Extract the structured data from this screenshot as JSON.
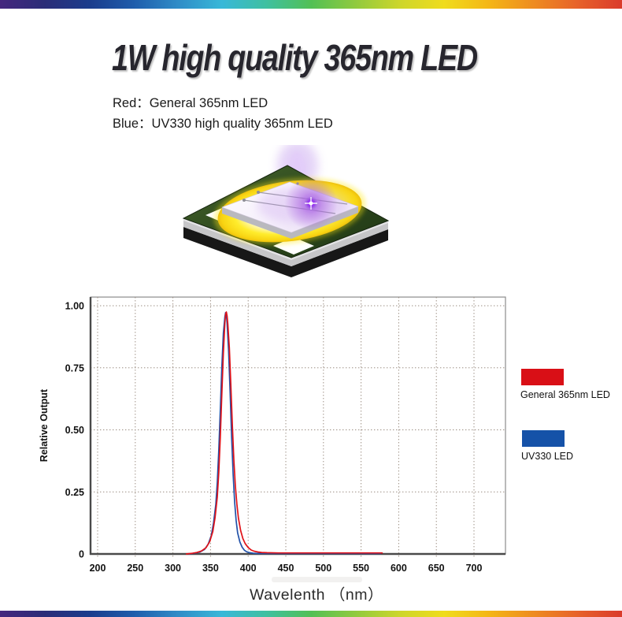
{
  "header": {
    "title": "1W high quality 365nm LED",
    "red_line": "Red：General 365nm LED",
    "blue_line": "Blue：UV330 high quality 365nm LED"
  },
  "rainbow": {
    "stops": [
      "#45277e",
      "#2b2d78",
      "#1b3c8c",
      "#1f5cab",
      "#2f8cc7",
      "#38b8d8",
      "#3fc0a0",
      "#52c055",
      "#90ca3e",
      "#cdd62b",
      "#f0dc1c",
      "#f4b616",
      "#ee8c20",
      "#e7622a",
      "#da3b2c"
    ]
  },
  "chip_image": {
    "description": "UV LED chip illustration with purple glow"
  },
  "chart_data": {
    "type": "line",
    "title": "",
    "xlabel": "Wavelenth （nm）",
    "ylabel": "Relative Output",
    "xlim": [
      190,
      742
    ],
    "ylim": [
      0,
      1.04
    ],
    "grid": "dotted",
    "grid_color": "#9a8c80",
    "axis_color": "#4a4a4a",
    "frame_color": "#8b8b8b",
    "legend_position": "right-outside",
    "x_ticks": [
      200,
      250,
      300,
      350,
      400,
      450,
      500,
      550,
      600,
      650,
      700
    ],
    "y_ticks": [
      {
        "value": 0,
        "label": "0"
      },
      {
        "value": 0.25,
        "label": "0.25"
      },
      {
        "value": 0.5,
        "label": "0.50"
      },
      {
        "value": 0.75,
        "label": "0.75"
      },
      {
        "value": 1,
        "label": "1.00"
      }
    ],
    "series": [
      {
        "name": "General 365nm LED",
        "color": "#e01218",
        "points": [
          [
            318,
            0
          ],
          [
            326,
            0.003
          ],
          [
            332,
            0.006
          ],
          [
            338,
            0.012
          ],
          [
            344,
            0.025
          ],
          [
            349,
            0.05
          ],
          [
            353,
            0.09
          ],
          [
            356,
            0.145
          ],
          [
            359,
            0.23
          ],
          [
            361,
            0.33
          ],
          [
            363,
            0.47
          ],
          [
            365,
            0.64
          ],
          [
            367,
            0.81
          ],
          [
            369,
            0.93
          ],
          [
            370,
            0.965
          ],
          [
            371,
            0.975
          ],
          [
            372,
            0.96
          ],
          [
            373,
            0.925
          ],
          [
            375,
            0.83
          ],
          [
            377,
            0.68
          ],
          [
            379,
            0.52
          ],
          [
            381,
            0.38
          ],
          [
            383,
            0.275
          ],
          [
            385,
            0.2
          ],
          [
            387,
            0.145
          ],
          [
            390,
            0.095
          ],
          [
            393,
            0.062
          ],
          [
            396,
            0.042
          ],
          [
            400,
            0.026
          ],
          [
            404,
            0.016
          ],
          [
            408,
            0.011
          ],
          [
            413,
            0.008
          ],
          [
            418,
            0.006
          ],
          [
            425,
            0.005
          ],
          [
            440,
            0.004
          ],
          [
            470,
            0.004
          ],
          [
            510,
            0.004
          ],
          [
            550,
            0.004
          ],
          [
            578,
            0.004
          ]
        ]
      },
      {
        "name": "UV330 LED",
        "color": "#2251a8",
        "points": [
          [
            322,
            0
          ],
          [
            330,
            0.004
          ],
          [
            336,
            0.008
          ],
          [
            342,
            0.018
          ],
          [
            347,
            0.04
          ],
          [
            351,
            0.075
          ],
          [
            354,
            0.125
          ],
          [
            357,
            0.2
          ],
          [
            359,
            0.29
          ],
          [
            361,
            0.42
          ],
          [
            363,
            0.58
          ],
          [
            365,
            0.75
          ],
          [
            367,
            0.89
          ],
          [
            369,
            0.955
          ],
          [
            370,
            0.972
          ],
          [
            371,
            0.965
          ],
          [
            372,
            0.93
          ],
          [
            374,
            0.82
          ],
          [
            376,
            0.65
          ],
          [
            378,
            0.47
          ],
          [
            380,
            0.32
          ],
          [
            382,
            0.21
          ],
          [
            384,
            0.135
          ],
          [
            386,
            0.085
          ],
          [
            389,
            0.048
          ],
          [
            392,
            0.027
          ],
          [
            395,
            0.015
          ],
          [
            398,
            0.009
          ],
          [
            402,
            0.005
          ],
          [
            407,
            0.003
          ],
          [
            412,
            0.002
          ],
          [
            420,
            0.002
          ],
          [
            450,
            0.002
          ],
          [
            500,
            0.002
          ],
          [
            545,
            0.002
          ],
          [
            576,
            0.002
          ]
        ]
      }
    ]
  },
  "legend": {
    "entries": [
      {
        "label": "General 365nm LED",
        "color": "#d90f16"
      },
      {
        "label": "UV330 LED",
        "color": "#1552a8"
      }
    ]
  }
}
